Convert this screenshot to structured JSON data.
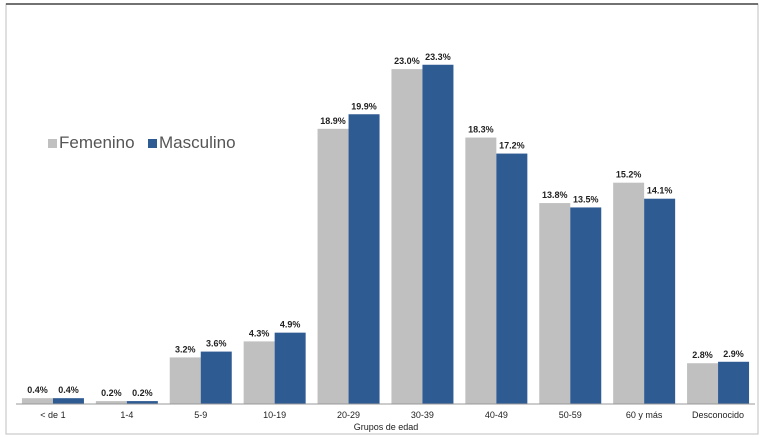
{
  "chart_data": {
    "type": "bar",
    "title": "",
    "xlabel": "Grupos de edad",
    "ylabel": "",
    "ylim": [
      0,
      25
    ],
    "grid": false,
    "legend_position": "left",
    "categories": [
      "< de 1",
      "1-4",
      "5-9",
      "10-19",
      "20-29",
      "30-39",
      "40-49",
      "50-59",
      "60 y más",
      "Desconocido"
    ],
    "series": [
      {
        "name": "Femenino",
        "color": "#c0c0c0",
        "values": [
          0.4,
          0.2,
          3.2,
          4.3,
          18.9,
          23.0,
          18.3,
          13.8,
          15.2,
          2.8
        ],
        "labels": [
          "0.4%",
          "0.2%",
          "3.2%",
          "4.3%",
          "18.9%",
          "23.0%",
          "18.3%",
          "13.8%",
          "15.2%",
          "2.8%"
        ]
      },
      {
        "name": "Masculino",
        "color": "#2f5b93",
        "values": [
          0.4,
          0.2,
          3.6,
          4.9,
          19.9,
          23.3,
          17.2,
          13.5,
          14.1,
          2.9
        ],
        "labels": [
          "0.4%",
          "0.2%",
          "3.6%",
          "4.9%",
          "19.9%",
          "23.3%",
          "17.2%",
          "13.5%",
          "14.1%",
          "2.9%"
        ]
      }
    ]
  }
}
